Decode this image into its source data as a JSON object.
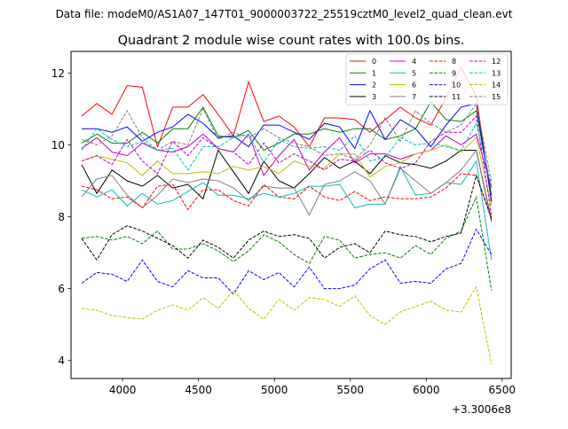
{
  "suptitle": "Data file: modeM0/AS1A07_147T01_9000003722_25519cztM0_level2_quad_clean.evt",
  "chart_data": {
    "type": "line",
    "title": "Quadrant 2 module wise count rates with 100.0s bins.",
    "xlabel": "",
    "ylabel": "",
    "x_offset_label": "+3.3006e8",
    "xlim": [
      3660,
      6560
    ],
    "ylim": [
      3.5,
      12.6
    ],
    "xticks": [
      4000,
      4500,
      5000,
      5500,
      6000,
      6500
    ],
    "yticks": [
      4,
      6,
      8,
      10,
      12
    ],
    "grid": false,
    "legend_placement": "top-right",
    "x": [
      3730,
      3830,
      3930,
      4030,
      4130,
      4230,
      4330,
      4430,
      4530,
      4630,
      4730,
      4830,
      4930,
      5030,
      5130,
      5230,
      5330,
      5430,
      5530,
      5630,
      5730,
      5830,
      5930,
      6030,
      6130,
      6230,
      6330,
      6430
    ],
    "series": [
      {
        "name": "0",
        "color": "#ff0000",
        "dash": "solid",
        "values": [
          10.8,
          11.15,
          10.85,
          11.65,
          11.6,
          9.95,
          11.05,
          11.05,
          11.4,
          10.85,
          10.25,
          11.75,
          10.65,
          10.8,
          10.5,
          9.95,
          10.75,
          10.75,
          10.7,
          10.35,
          10.7,
          11.05,
          10.75,
          10.55,
          11.3,
          12.15,
          11.35,
          8.4
        ]
      },
      {
        "name": "1",
        "color": "#008000",
        "dash": "solid",
        "values": [
          10.05,
          10.3,
          10.05,
          10.05,
          10.35,
          10.05,
          10.45,
          10.45,
          11.05,
          10.25,
          10.2,
          10.4,
          9.85,
          10.05,
          10.3,
          10.3,
          10.45,
          10.35,
          10.45,
          10.45,
          10.15,
          10.25,
          10.45,
          11.2,
          10.7,
          10.65,
          10.95,
          8.6
        ]
      },
      {
        "name": "2",
        "color": "#0000ff",
        "dash": "solid",
        "values": [
          10.45,
          10.45,
          10.35,
          10.5,
          10.1,
          10.35,
          10.5,
          10.85,
          10.6,
          10.2,
          10.25,
          9.95,
          10.55,
          10.55,
          10.35,
          10.15,
          10.6,
          10.5,
          9.9,
          10.95,
          10.15,
          10.7,
          10.45,
          9.95,
          10.55,
          11.05,
          11.15,
          8.45
        ]
      },
      {
        "name": "3",
        "color": "#000000",
        "dash": "solid",
        "values": [
          9.45,
          8.65,
          9.3,
          9.0,
          8.85,
          9.15,
          8.8,
          8.9,
          8.5,
          9.85,
          9.25,
          8.65,
          9.55,
          9.0,
          8.8,
          9.2,
          9.65,
          9.35,
          9.55,
          9.2,
          9.7,
          9.5,
          9.45,
          9.35,
          9.55,
          9.85,
          9.85,
          7.9
        ]
      },
      {
        "name": "4",
        "color": "#c000c0",
        "dash": "solid",
        "values": [
          9.9,
          10.2,
          9.8,
          9.7,
          10.05,
          9.85,
          9.8,
          9.95,
          10.3,
          9.9,
          9.8,
          10.3,
          9.15,
          9.7,
          10.15,
          9.3,
          9.8,
          10.2,
          9.5,
          9.75,
          9.75,
          9.6,
          9.75,
          9.85,
          10.25,
          10.0,
          10.3,
          8.8
        ]
      },
      {
        "name": "5",
        "color": "#00bfbf",
        "dash": "solid",
        "values": [
          8.75,
          8.55,
          8.75,
          8.3,
          8.65,
          8.35,
          8.45,
          8.7,
          8.95,
          8.6,
          8.6,
          8.5,
          8.65,
          8.55,
          8.65,
          8.85,
          8.85,
          8.9,
          8.25,
          8.35,
          8.35,
          9.4,
          8.6,
          8.65,
          8.95,
          8.9,
          9.55,
          6.8
        ]
      },
      {
        "name": "6",
        "color": "#bfbf00",
        "dash": "solid",
        "values": [
          9.55,
          9.7,
          9.6,
          9.5,
          9.15,
          9.55,
          9.2,
          9.2,
          9.25,
          9.2,
          9.4,
          9.3,
          9.4,
          9.2,
          9.55,
          9.4,
          9.35,
          9.75,
          9.75,
          9.1,
          9.4,
          9.5,
          9.75,
          9.85,
          10.0,
          9.8,
          10.2,
          8.3
        ]
      },
      {
        "name": "7",
        "color": "#808080",
        "dash": "solid",
        "values": [
          8.55,
          9.05,
          9.15,
          8.6,
          8.25,
          8.6,
          9.05,
          8.95,
          9.05,
          9.0,
          8.8,
          8.45,
          8.85,
          8.8,
          8.8,
          8.05,
          8.9,
          9.0,
          9.25,
          9.0,
          8.35,
          9.35,
          9.0,
          8.65,
          8.95,
          9.3,
          9.85,
          7.85
        ]
      },
      {
        "name": "8",
        "color": "#ff0000",
        "dash": "dashed",
        "values": [
          8.85,
          8.75,
          8.5,
          8.55,
          8.25,
          8.85,
          8.9,
          8.2,
          8.75,
          8.75,
          8.45,
          8.3,
          8.9,
          8.55,
          8.5,
          8.85,
          8.55,
          8.45,
          8.7,
          8.45,
          8.55,
          8.5,
          8.5,
          8.55,
          8.8,
          9.2,
          9.15,
          7.95
        ]
      },
      {
        "name": "9",
        "color": "#008000",
        "dash": "dashed",
        "values": [
          7.4,
          7.45,
          7.35,
          7.45,
          7.25,
          7.6,
          7.1,
          7.1,
          7.25,
          7.05,
          6.75,
          7.05,
          7.5,
          7.3,
          6.95,
          6.7,
          7.45,
          7.35,
          6.85,
          6.95,
          7.0,
          6.85,
          7.2,
          6.95,
          7.4,
          7.6,
          8.55,
          5.95
        ]
      },
      {
        "name": "10",
        "color": "#0000ff",
        "dash": "dashed",
        "values": [
          6.15,
          6.45,
          6.4,
          6.2,
          6.8,
          6.2,
          6.05,
          6.5,
          6.3,
          6.3,
          5.85,
          6.5,
          6.25,
          6.45,
          6.05,
          6.6,
          6.0,
          6.0,
          6.1,
          6.55,
          6.8,
          6.15,
          6.2,
          6.15,
          6.55,
          6.7,
          7.65,
          6.95
        ]
      },
      {
        "name": "11",
        "color": "#000000",
        "dash": "dashed",
        "values": [
          7.4,
          6.8,
          7.5,
          7.75,
          7.6,
          7.4,
          7.2,
          6.85,
          7.35,
          7.15,
          6.85,
          7.35,
          7.6,
          7.45,
          7.5,
          7.4,
          6.85,
          7.15,
          7.25,
          7.0,
          7.6,
          7.5,
          7.45,
          7.3,
          7.45,
          7.55,
          9.15,
          7.95
        ]
      },
      {
        "name": "12",
        "color": "#c000c0",
        "dash": "dashed",
        "values": [
          9.55,
          9.7,
          9.45,
          10.15,
          9.55,
          9.2,
          10.1,
          9.7,
          10.2,
          9.9,
          9.8,
          9.45,
          10.05,
          9.5,
          9.75,
          9.55,
          9.3,
          9.6,
          9.55,
          9.85,
          9.5,
          9.35,
          9.5,
          10.1,
          10.35,
          10.35,
          10.8,
          8.05
        ]
      },
      {
        "name": "13",
        "color": "#00bfbf",
        "dash": "dashed",
        "values": [
          9.85,
          10.45,
          10.15,
          9.95,
          10.1,
          9.85,
          9.9,
          9.3,
          9.95,
          9.95,
          10.2,
          10.3,
          9.5,
          10.15,
          9.95,
          9.9,
          9.95,
          9.85,
          10.25,
          9.55,
          9.65,
          10.2,
          10.0,
          10.05,
          9.95,
          9.85,
          10.6,
          8.85
        ]
      },
      {
        "name": "14",
        "color": "#bfbf00",
        "dash": "dashed",
        "values": [
          5.45,
          5.4,
          5.25,
          5.2,
          5.15,
          5.4,
          5.55,
          5.4,
          5.75,
          5.45,
          5.95,
          5.45,
          5.15,
          5.7,
          5.4,
          5.75,
          5.7,
          5.5,
          5.8,
          5.25,
          5.0,
          5.35,
          5.5,
          5.65,
          5.4,
          5.35,
          6.05,
          3.9
        ]
      },
      {
        "name": "15",
        "color": "#808080",
        "dash": "dashed",
        "values": [
          10.15,
          10.0,
          10.25,
          10.95,
          10.2,
          9.85,
          10.1,
          10.0,
          11.0,
          10.15,
          10.35,
          10.2,
          10.45,
          10.2,
          10.05,
          9.95,
          9.7,
          9.75,
          9.6,
          10.0,
          10.75,
          10.1,
          10.95,
          10.6,
          10.35,
          10.55,
          11.15,
          8.95
        ]
      }
    ]
  }
}
